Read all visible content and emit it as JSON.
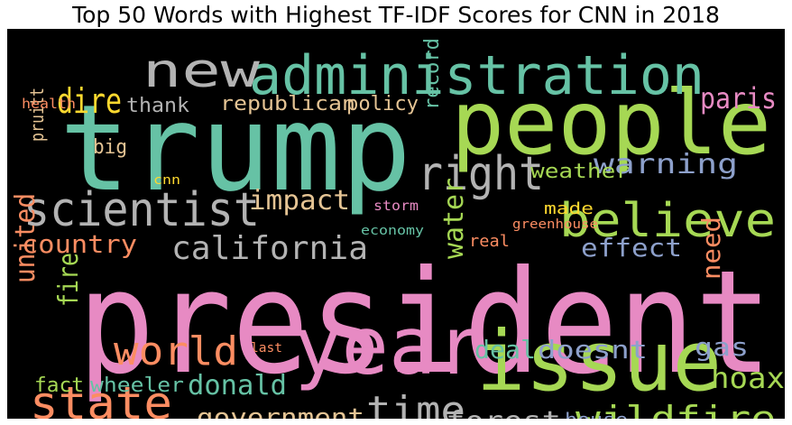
{
  "chart_data": {
    "type": "wordcloud",
    "title": "Top 50 Words with Highest TF-IDF Scores for CNN in 2018",
    "background": "#000000",
    "palette": [
      "#66c2a5",
      "#fc8d62",
      "#8da0cb",
      "#e78ac3",
      "#a6d854",
      "#ffd92f",
      "#e5c494",
      "#b3b3b3"
    ],
    "words": [
      {
        "text": "president",
        "color": "#e78ac3"
      },
      {
        "text": "trump",
        "color": "#66c2a5"
      },
      {
        "text": "people",
        "color": "#a6d854"
      },
      {
        "text": "issue",
        "color": "#a6d854"
      },
      {
        "text": "year",
        "color": "#e78ac3"
      },
      {
        "text": "administration",
        "color": "#66c2a5"
      },
      {
        "text": "scientist",
        "color": "#b3b3b3"
      },
      {
        "text": "new",
        "color": "#b3b3b3"
      },
      {
        "text": "right",
        "color": "#b3b3b3"
      },
      {
        "text": "believe",
        "color": "#a6d854"
      },
      {
        "text": "state",
        "color": "#fc8d62"
      },
      {
        "text": "world",
        "color": "#fc8d62"
      },
      {
        "text": "california",
        "color": "#b3b3b3"
      },
      {
        "text": "time",
        "color": "#b3b3b3"
      },
      {
        "text": "wildfire",
        "color": "#a6d854"
      },
      {
        "text": "government",
        "color": "#e5c494"
      },
      {
        "text": "forest",
        "color": "#b3b3b3"
      },
      {
        "text": "donald",
        "color": "#66c2a5"
      },
      {
        "text": "impact",
        "color": "#e5c494"
      },
      {
        "text": "paris",
        "color": "#e78ac3"
      },
      {
        "text": "dire",
        "color": "#ffd92f"
      },
      {
        "text": "warning",
        "color": "#8da0cb"
      },
      {
        "text": "effect",
        "color": "#8da0cb"
      },
      {
        "text": "country",
        "color": "#fc8d62"
      },
      {
        "text": "hoax",
        "color": "#a6d854"
      },
      {
        "text": "deal",
        "color": "#66c2a5"
      },
      {
        "text": "doesnt",
        "color": "#8da0cb"
      },
      {
        "text": "gas",
        "color": "#8da0cb"
      },
      {
        "text": "united",
        "color": "#fc8d62"
      },
      {
        "text": "fire",
        "color": "#a6d854"
      },
      {
        "text": "water",
        "color": "#a6d854"
      },
      {
        "text": "need",
        "color": "#fc8d62"
      },
      {
        "text": "republican",
        "color": "#e5c494"
      },
      {
        "text": "policy",
        "color": "#e5c494"
      },
      {
        "text": "weather",
        "color": "#a6d854"
      },
      {
        "text": "thank",
        "color": "#b3b3b3"
      },
      {
        "text": "big",
        "color": "#e5c494"
      },
      {
        "text": "fact",
        "color": "#a6d854"
      },
      {
        "text": "wheeler",
        "color": "#66c2a5"
      },
      {
        "text": "house",
        "color": "#8da0cb"
      },
      {
        "text": "made",
        "color": "#ffd92f"
      },
      {
        "text": "real",
        "color": "#fc8d62"
      },
      {
        "text": "record",
        "color": "#66c2a5"
      },
      {
        "text": "pruitt",
        "color": "#e5c494"
      },
      {
        "text": "health",
        "color": "#fc8d62"
      },
      {
        "text": "cnn",
        "color": "#ffd92f"
      },
      {
        "text": "storm",
        "color": "#e78ac3"
      },
      {
        "text": "economy",
        "color": "#66c2a5"
      },
      {
        "text": "greenhouse",
        "color": "#fc8d62"
      },
      {
        "text": "last",
        "color": "#fc8d62"
      }
    ]
  }
}
